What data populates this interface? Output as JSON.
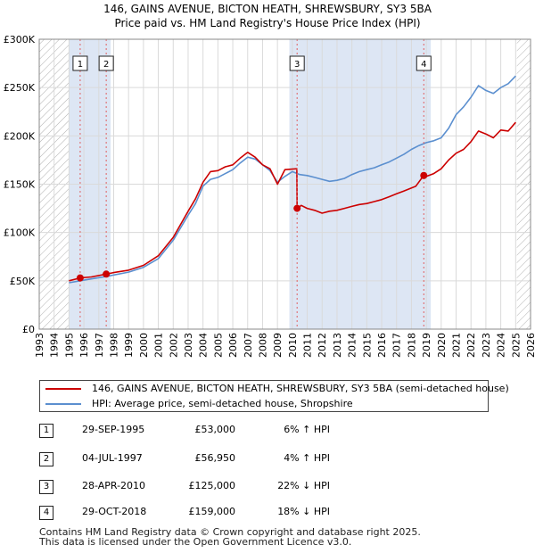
{
  "chart_data": {
    "type": "line",
    "title": "146, GAINS AVENUE, BICTON HEATH, SHREWSBURY, SY3 5BA",
    "subtitle": "Price paid vs. HM Land Registry's House Price Index (HPI)",
    "xlabel": "",
    "ylabel": "",
    "xlim": [
      1993,
      2026
    ],
    "ylim": [
      0,
      300000
    ],
    "grid": true,
    "x_ticks": [
      1993,
      1994,
      1995,
      1996,
      1997,
      1998,
      1999,
      2000,
      2001,
      2002,
      2003,
      2004,
      2005,
      2006,
      2007,
      2008,
      2009,
      2010,
      2011,
      2012,
      2013,
      2014,
      2015,
      2016,
      2017,
      2018,
      2019,
      2020,
      2021,
      2022,
      2023,
      2024,
      2025,
      2026
    ],
    "y_ticks": [
      {
        "value": 0,
        "label": "£0"
      },
      {
        "value": 50000,
        "label": "£50K"
      },
      {
        "value": 100000,
        "label": "£100K"
      },
      {
        "value": 150000,
        "label": "£150K"
      },
      {
        "value": 200000,
        "label": "£200K"
      },
      {
        "value": 250000,
        "label": "£250K"
      },
      {
        "value": 300000,
        "label": "£300K"
      }
    ],
    "hatched_ranges": [
      [
        1993,
        1995.0
      ],
      [
        2025.08,
        2026
      ]
    ],
    "shaded_ranges": [
      [
        1995.0,
        1997.8
      ],
      [
        2009.8,
        2019.3
      ]
    ],
    "series": [
      {
        "name": "146, GAINS AVENUE, BICTON HEATH, SHREWSBURY, SY3 5BA (semi-detached house)",
        "color": "#cc0000",
        "x": [
          1995,
          1995.75,
          1996.5,
          1997.5,
          1998,
          1999,
          2000,
          2001,
          2002,
          2003,
          2003.5,
          2004,
          2004.5,
          2005,
          2005.5,
          2006,
          2006.5,
          2007,
          2007.5,
          2008,
          2008.5,
          2009,
          2009.5,
          2010.3,
          2010.32,
          2010.6,
          2011,
          2011.5,
          2012,
          2012.5,
          2013,
          2013.5,
          2014,
          2014.5,
          2015,
          2015.5,
          2016,
          2016.5,
          2017,
          2017.5,
          2018.3,
          2018.82,
          2018.84,
          2019,
          2019.5,
          2020,
          2020.5,
          2021,
          2021.5,
          2022,
          2022.5,
          2023,
          2023.5,
          2024,
          2024.5,
          2025
        ],
        "values": [
          50000,
          53000,
          54000,
          56950,
          58500,
          61000,
          66000,
          76000,
          95000,
          122000,
          135000,
          152000,
          163000,
          164000,
          168000,
          170000,
          177000,
          183000,
          178000,
          170000,
          166000,
          150000,
          165000,
          166000,
          125000,
          128000,
          125000,
          123000,
          120000,
          122000,
          123000,
          125000,
          127000,
          129000,
          130000,
          132000,
          134000,
          137000,
          140000,
          143000,
          148000,
          159000,
          158000,
          158000,
          161000,
          166000,
          175000,
          182000,
          186000,
          194000,
          205000,
          202000,
          198000,
          206000,
          205000,
          214000
        ]
      },
      {
        "name": "HPI: Average price, semi-detached house, Shropshire",
        "color": "#5b8fcf",
        "x": [
          1995,
          1995.75,
          1996.5,
          1997.5,
          1998,
          1999,
          2000,
          2001,
          2002,
          2003,
          2003.5,
          2004,
          2004.5,
          2005,
          2005.5,
          2006,
          2006.5,
          2007,
          2007.5,
          2008,
          2008.5,
          2009,
          2009.5,
          2010,
          2010.5,
          2011,
          2011.5,
          2012,
          2012.5,
          2013,
          2013.5,
          2014,
          2014.5,
          2015,
          2015.5,
          2016,
          2016.5,
          2017,
          2017.5,
          2018,
          2018.5,
          2019,
          2019.5,
          2020,
          2020.5,
          2021,
          2021.5,
          2022,
          2022.5,
          2023,
          2023.5,
          2024,
          2024.5,
          2025
        ],
        "values": [
          48000,
          50000,
          52000,
          54500,
          56000,
          59000,
          64000,
          73000,
          92000,
          118000,
          130000,
          148000,
          155000,
          157000,
          161000,
          165000,
          172000,
          178000,
          176000,
          170000,
          164000,
          152000,
          158000,
          163000,
          160000,
          159000,
          157000,
          155000,
          153000,
          154000,
          156000,
          160000,
          163000,
          165000,
          167000,
          170000,
          173000,
          177000,
          181000,
          186000,
          190000,
          193000,
          195000,
          198000,
          208000,
          222000,
          230000,
          240000,
          252000,
          247000,
          244000,
          250000,
          254000,
          262000
        ]
      }
    ],
    "sales": [
      {
        "marker": "1",
        "x": 1995.75,
        "value": 53000
      },
      {
        "marker": "2",
        "x": 1997.5,
        "value": 56950
      },
      {
        "marker": "3",
        "x": 2010.32,
        "value": 125000
      },
      {
        "marker": "4",
        "x": 2018.83,
        "value": 159000
      }
    ]
  },
  "legend": {
    "property_label": "146, GAINS AVENUE, BICTON HEATH, SHREWSBURY, SY3 5BA (semi-detached house)",
    "hpi_label": "HPI: Average price, semi-detached house, Shropshire"
  },
  "transactions": [
    {
      "marker": "1",
      "date": "29-SEP-1995",
      "price": "£53,000",
      "hpi": "6% ↑ HPI"
    },
    {
      "marker": "2",
      "date": "04-JUL-1997",
      "price": "£56,950",
      "hpi": "4% ↑ HPI"
    },
    {
      "marker": "3",
      "date": "28-APR-2010",
      "price": "£125,000",
      "hpi": "22% ↓ HPI"
    },
    {
      "marker": "4",
      "date": "29-OCT-2018",
      "price": "£159,000",
      "hpi": "18% ↓ HPI"
    }
  ],
  "footer": {
    "line1": "Contains HM Land Registry data © Crown copyright and database right 2025.",
    "line2": "This data is licensed under the Open Government Licence v3.0."
  }
}
